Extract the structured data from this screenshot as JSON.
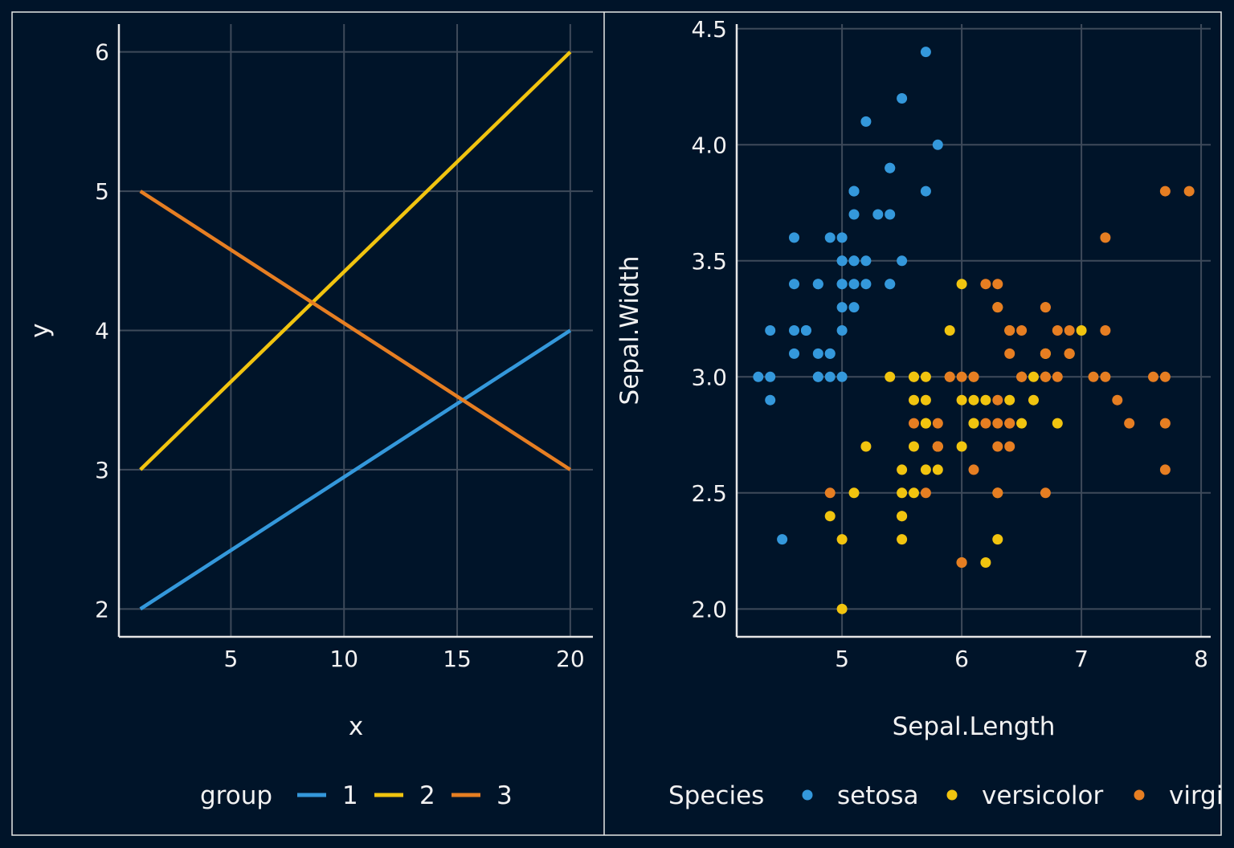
{
  "colors": {
    "background": "#001429",
    "blue": "#3498db",
    "yellow": "#f1c40f",
    "orange": "#e67e22",
    "grid": "#3e4a5a"
  },
  "chart_data": [
    {
      "type": "line",
      "xlabel": "x",
      "ylabel": "y",
      "xlim": [
        0.05,
        21
      ],
      "ylim": [
        1.8,
        6.2
      ],
      "xticks": [
        "5",
        "10",
        "15",
        "20"
      ],
      "yticks": [
        "2",
        "3",
        "4",
        "5",
        "6"
      ],
      "grid": true,
      "legend": {
        "title": "group",
        "position": "bottom",
        "labels": [
          "1",
          "2",
          "3"
        ]
      },
      "series": [
        {
          "name": "1",
          "color": "#3498db",
          "x": [
            1,
            20
          ],
          "y": [
            2,
            4
          ]
        },
        {
          "name": "2",
          "color": "#f1c40f",
          "x": [
            1,
            20
          ],
          "y": [
            3,
            6
          ]
        },
        {
          "name": "3",
          "color": "#e67e22",
          "x": [
            1,
            20
          ],
          "y": [
            5,
            3
          ]
        }
      ]
    },
    {
      "type": "scatter",
      "xlabel": "Sepal.Length",
      "ylabel": "Sepal.Width",
      "xlim": [
        4.12,
        8.08
      ],
      "ylim": [
        1.88,
        4.52
      ],
      "xticks": [
        "5",
        "6",
        "7",
        "8"
      ],
      "yticks": [
        "2.0",
        "2.5",
        "3.0",
        "3.5",
        "4.0",
        "4.5"
      ],
      "grid": true,
      "legend": {
        "title": "Species",
        "position": "bottom",
        "labels": [
          "setosa",
          "versicolor",
          "virginica"
        ]
      },
      "series": [
        {
          "name": "setosa",
          "color": "#3498db",
          "points": [
            [
              5.1,
              3.5
            ],
            [
              4.9,
              3.0
            ],
            [
              4.7,
              3.2
            ],
            [
              4.6,
              3.1
            ],
            [
              5.0,
              3.6
            ],
            [
              5.4,
              3.9
            ],
            [
              4.6,
              3.4
            ],
            [
              5.0,
              3.4
            ],
            [
              4.4,
              2.9
            ],
            [
              4.9,
              3.1
            ],
            [
              5.4,
              3.7
            ],
            [
              4.8,
              3.4
            ],
            [
              4.8,
              3.0
            ],
            [
              4.3,
              3.0
            ],
            [
              5.8,
              4.0
            ],
            [
              5.7,
              4.4
            ],
            [
              5.4,
              3.9
            ],
            [
              5.1,
              3.5
            ],
            [
              5.7,
              3.8
            ],
            [
              5.1,
              3.8
            ],
            [
              5.4,
              3.4
            ],
            [
              5.1,
              3.7
            ],
            [
              4.6,
              3.6
            ],
            [
              5.1,
              3.3
            ],
            [
              4.8,
              3.4
            ],
            [
              5.0,
              3.0
            ],
            [
              5.0,
              3.4
            ],
            [
              5.2,
              3.5
            ],
            [
              5.2,
              3.4
            ],
            [
              4.7,
              3.2
            ],
            [
              4.8,
              3.1
            ],
            [
              5.4,
              3.4
            ],
            [
              5.2,
              4.1
            ],
            [
              5.5,
              4.2
            ],
            [
              4.9,
              3.1
            ],
            [
              5.0,
              3.2
            ],
            [
              5.5,
              3.5
            ],
            [
              4.9,
              3.6
            ],
            [
              4.4,
              3.0
            ],
            [
              5.1,
              3.4
            ],
            [
              5.0,
              3.5
            ],
            [
              4.5,
              2.3
            ],
            [
              4.4,
              3.2
            ],
            [
              5.0,
              3.5
            ],
            [
              5.1,
              3.8
            ],
            [
              4.8,
              3.0
            ],
            [
              5.1,
              3.8
            ],
            [
              4.6,
              3.2
            ],
            [
              5.3,
              3.7
            ],
            [
              5.0,
              3.3
            ]
          ]
        },
        {
          "name": "versicolor",
          "color": "#f1c40f",
          "points": [
            [
              7.0,
              3.2
            ],
            [
              6.4,
              3.2
            ],
            [
              6.9,
              3.1
            ],
            [
              5.5,
              2.3
            ],
            [
              6.5,
              2.8
            ],
            [
              5.7,
              2.8
            ],
            [
              6.3,
              3.3
            ],
            [
              4.9,
              2.4
            ],
            [
              6.6,
              2.9
            ],
            [
              5.2,
              2.7
            ],
            [
              5.0,
              2.0
            ],
            [
              5.9,
              3.0
            ],
            [
              6.0,
              2.2
            ],
            [
              6.1,
              2.9
            ],
            [
              5.6,
              2.9
            ],
            [
              6.7,
              3.1
            ],
            [
              5.6,
              3.0
            ],
            [
              5.8,
              2.7
            ],
            [
              6.2,
              2.2
            ],
            [
              5.6,
              2.5
            ],
            [
              5.9,
              3.2
            ],
            [
              6.1,
              2.8
            ],
            [
              6.3,
              2.5
            ],
            [
              6.1,
              2.8
            ],
            [
              6.4,
              2.9
            ],
            [
              6.6,
              3.0
            ],
            [
              6.8,
              2.8
            ],
            [
              6.7,
              3.0
            ],
            [
              6.0,
              2.9
            ],
            [
              5.7,
              2.6
            ],
            [
              5.5,
              2.4
            ],
            [
              5.5,
              2.4
            ],
            [
              5.8,
              2.7
            ],
            [
              6.0,
              2.7
            ],
            [
              5.4,
              3.0
            ],
            [
              6.0,
              3.4
            ],
            [
              6.7,
              3.1
            ],
            [
              6.3,
              2.3
            ],
            [
              5.6,
              3.0
            ],
            [
              5.5,
              2.5
            ],
            [
              5.5,
              2.6
            ],
            [
              6.1,
              3.0
            ],
            [
              5.8,
              2.6
            ],
            [
              5.0,
              2.3
            ],
            [
              5.6,
              2.7
            ],
            [
              5.7,
              3.0
            ],
            [
              5.7,
              2.9
            ],
            [
              6.2,
              2.9
            ],
            [
              5.1,
              2.5
            ],
            [
              5.7,
              2.8
            ]
          ]
        },
        {
          "name": "virginica",
          "color": "#e67e22",
          "points": [
            [
              6.3,
              3.3
            ],
            [
              5.8,
              2.7
            ],
            [
              7.1,
              3.0
            ],
            [
              6.3,
              2.9
            ],
            [
              6.5,
              3.0
            ],
            [
              7.6,
              3.0
            ],
            [
              4.9,
              2.5
            ],
            [
              7.3,
              2.9
            ],
            [
              6.7,
              2.5
            ],
            [
              7.2,
              3.6
            ],
            [
              6.5,
              3.2
            ],
            [
              6.4,
              2.7
            ],
            [
              6.8,
              3.0
            ],
            [
              5.7,
              2.5
            ],
            [
              5.8,
              2.8
            ],
            [
              6.4,
              3.2
            ],
            [
              6.5,
              3.0
            ],
            [
              7.7,
              3.8
            ],
            [
              7.7,
              2.6
            ],
            [
              6.0,
              2.2
            ],
            [
              6.9,
              3.2
            ],
            [
              5.6,
              2.8
            ],
            [
              7.7,
              2.8
            ],
            [
              6.3,
              2.7
            ],
            [
              6.7,
              3.3
            ],
            [
              7.2,
              3.2
            ],
            [
              6.2,
              2.8
            ],
            [
              6.1,
              3.0
            ],
            [
              6.4,
              2.8
            ],
            [
              7.2,
              3.0
            ],
            [
              7.4,
              2.8
            ],
            [
              7.9,
              3.8
            ],
            [
              6.4,
              2.8
            ],
            [
              6.3,
              2.8
            ],
            [
              6.1,
              2.6
            ],
            [
              7.7,
              3.0
            ],
            [
              6.3,
              3.4
            ],
            [
              6.4,
              3.1
            ],
            [
              6.0,
              3.0
            ],
            [
              6.9,
              3.1
            ],
            [
              6.7,
              3.1
            ],
            [
              6.9,
              3.1
            ],
            [
              5.8,
              2.7
            ],
            [
              6.8,
              3.2
            ],
            [
              6.7,
              3.3
            ],
            [
              6.7,
              3.0
            ],
            [
              6.3,
              2.5
            ],
            [
              6.5,
              3.0
            ],
            [
              6.2,
              3.4
            ],
            [
              5.9,
              3.0
            ]
          ]
        }
      ]
    }
  ]
}
